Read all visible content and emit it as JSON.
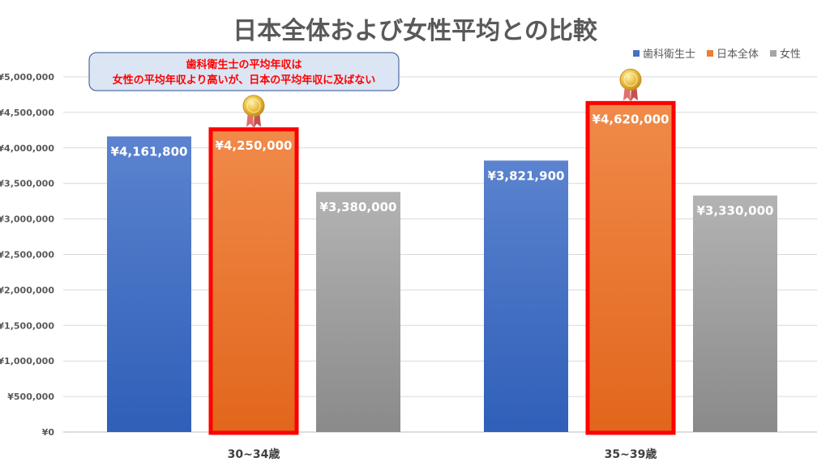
{
  "chart_data": {
    "type": "bar",
    "title": "日本全体および女性平均との比較",
    "categories": [
      "30~34歳",
      "35~39歳"
    ],
    "series": [
      {
        "name": "歯科衛生士",
        "values": [
          4161800,
          3821900
        ],
        "labels": [
          "¥4,161,800",
          "¥3,821,900"
        ],
        "color_top": "#5b83cf",
        "color_bottom": "#2f5fb8"
      },
      {
        "name": "日本全体",
        "values": [
          4250000,
          4620000
        ],
        "labels": [
          "¥4,250,000",
          "¥4,620,000"
        ],
        "color_top": "#f08a4a",
        "color_bottom": "#e2661c",
        "highlight": "#ff0000"
      },
      {
        "name": "女性",
        "values": [
          3380000,
          3330000
        ],
        "labels": [
          "¥3,380,000",
          "¥3,330,000"
        ],
        "color_top": "#b3b3b3",
        "color_bottom": "#8a8a8a"
      }
    ],
    "ylim": [
      0,
      5000000
    ],
    "yticks": [
      0,
      500000,
      1000000,
      1500000,
      2000000,
      2500000,
      3000000,
      3500000,
      4000000,
      4500000,
      5000000
    ],
    "ytick_labels": [
      "¥0",
      "¥500,000",
      "¥1,000,000",
      "¥1,500,000",
      "¥2,000,000",
      "¥2,500,000",
      "¥3,000,000",
      "¥3,500,000",
      "¥4,000,000",
      "¥4,500,000",
      "¥5,000,000"
    ],
    "xlabel": "",
    "ylabel": "",
    "grid": true,
    "legend_position": "top-right"
  },
  "annotation": {
    "line1": "歯科衛生士の平均年収は",
    "line2": "女性の平均年収より高いが、日本の平均年収に及ばない",
    "text_color": "#ff0000",
    "background": "#dbe5f3",
    "border": "#2f4f8f"
  },
  "medal": {
    "icon": "gold-medal-icon",
    "color": "#e8b634"
  }
}
